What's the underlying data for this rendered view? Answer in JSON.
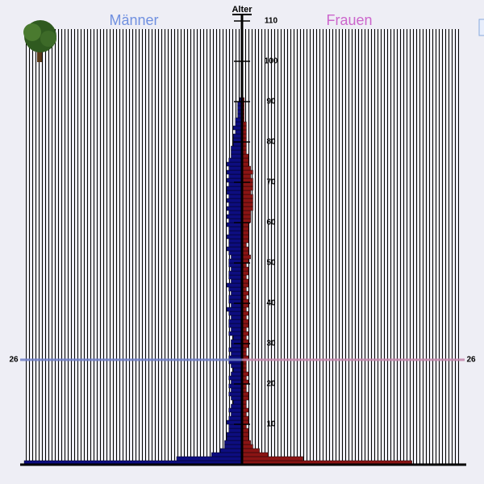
{
  "chart_data": {
    "type": "pyramid",
    "title_left": "Männer",
    "title_right": "Frauen",
    "axis_label": "Alter",
    "color_left": "#0d0d80",
    "color_right": "#8a1414",
    "title_left_color": "#7090e0",
    "title_right_color": "#cc66cc",
    "ylim": [
      0,
      110
    ],
    "yticks": [
      10,
      20,
      30,
      40,
      50,
      60,
      70,
      80,
      90,
      100,
      110
    ],
    "xlim": [
      0,
      100
    ],
    "marker": {
      "value": 26
    },
    "ages": [
      0,
      1,
      2,
      3,
      4,
      5,
      6,
      7,
      8,
      9,
      10,
      11,
      12,
      13,
      14,
      15,
      16,
      17,
      18,
      19,
      20,
      21,
      22,
      23,
      24,
      25,
      26,
      27,
      28,
      29,
      30,
      31,
      32,
      33,
      34,
      35,
      36,
      37,
      38,
      39,
      40,
      41,
      42,
      43,
      44,
      45,
      46,
      47,
      48,
      49,
      50,
      51,
      52,
      53,
      54,
      55,
      56,
      57,
      58,
      59,
      60,
      61,
      62,
      63,
      64,
      65,
      66,
      67,
      68,
      69,
      70,
      71,
      72,
      73,
      74,
      75,
      76,
      77,
      78,
      79,
      80,
      81,
      82,
      83,
      84,
      85,
      86,
      87,
      88,
      89,
      90
    ],
    "series": [
      {
        "name": "Männer",
        "values": [
          100,
          30,
          14,
          10,
          8,
          8,
          7,
          7,
          6,
          6,
          7,
          6,
          5,
          6,
          5,
          4,
          5,
          6,
          5,
          6,
          5,
          6,
          5,
          4,
          5,
          6,
          6,
          5,
          6,
          5,
          5,
          4,
          6,
          5,
          6,
          6,
          5,
          6,
          7,
          5,
          6,
          6,
          5,
          6,
          7,
          5,
          6,
          6,
          5,
          6,
          6,
          5,
          6,
          7,
          6,
          6,
          7,
          6,
          6,
          7,
          6,
          7,
          6,
          7,
          6,
          7,
          6,
          7,
          7,
          6,
          7,
          6,
          7,
          6,
          7,
          6,
          5,
          5,
          5,
          4,
          4,
          4,
          3,
          4,
          3,
          3,
          2,
          2,
          2,
          2,
          1
        ]
      },
      {
        "name": "Frauen",
        "values": [
          78,
          28,
          12,
          8,
          5,
          4,
          3,
          3,
          3,
          2,
          3,
          3,
          2,
          3,
          2,
          2,
          3,
          3,
          2,
          2,
          3,
          2,
          3,
          2,
          2,
          2,
          3,
          2,
          2,
          3,
          3,
          2,
          3,
          2,
          3,
          3,
          2,
          3,
          2,
          3,
          3,
          2,
          3,
          2,
          3,
          3,
          2,
          3,
          3,
          2,
          3,
          4,
          3,
          3,
          2,
          3,
          3,
          3,
          3,
          3,
          4,
          4,
          4,
          5,
          5,
          5,
          5,
          4,
          5,
          5,
          5,
          4,
          5,
          4,
          3,
          3,
          3,
          2,
          2,
          2,
          2,
          2,
          2,
          2,
          2,
          1,
          1,
          1,
          1,
          1,
          1
        ]
      }
    ]
  }
}
